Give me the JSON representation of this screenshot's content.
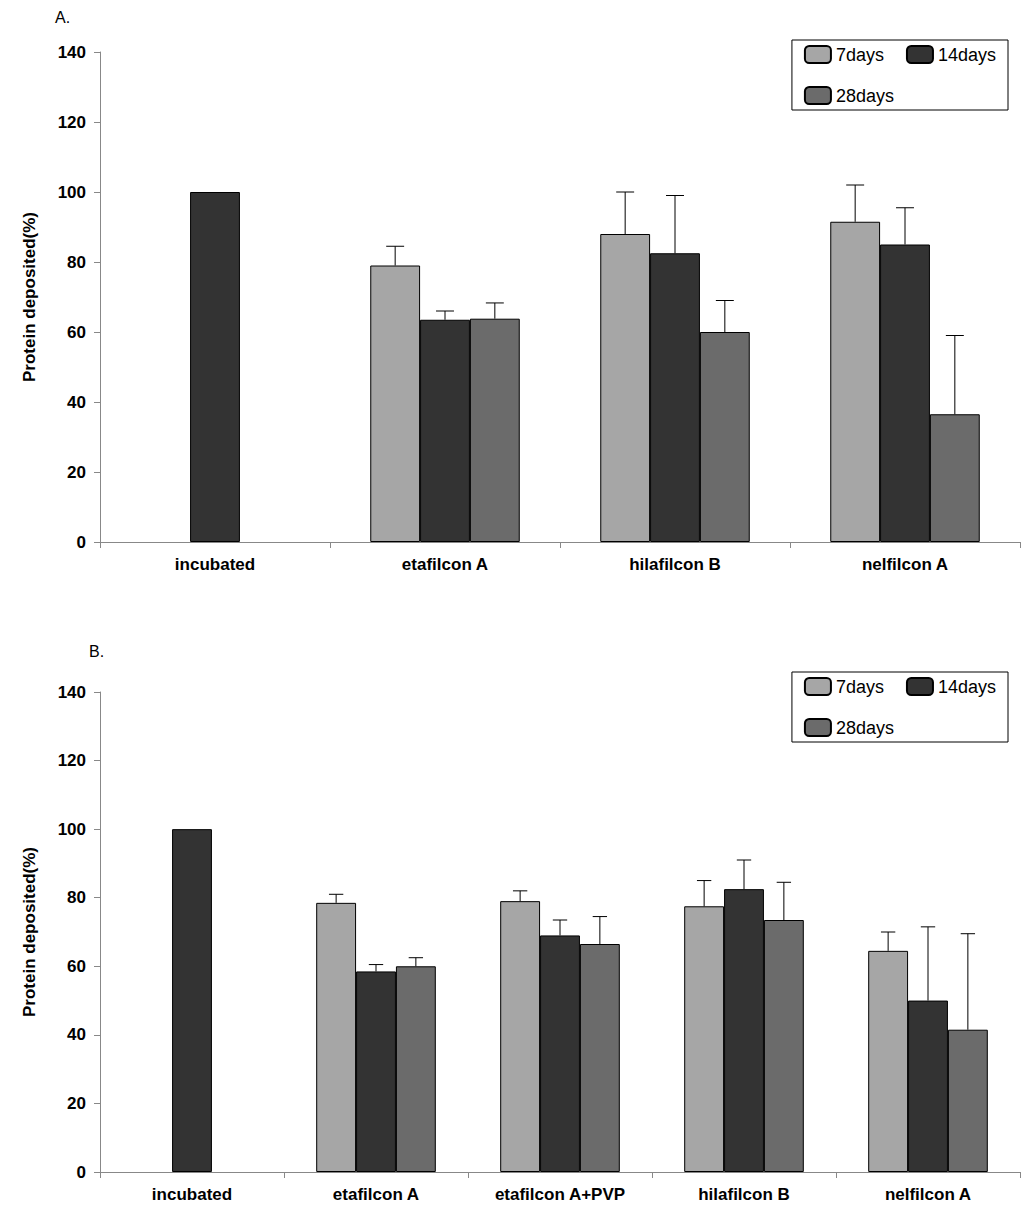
{
  "chart_data": [
    {
      "type": "bar",
      "title": "A.",
      "categories": [
        "incubated",
        "etafilcon A",
        "hilafilcon B",
        "nelfilcon A"
      ],
      "ylabel": "Protein deposited(%)",
      "ylim": [
        0,
        140
      ],
      "yticks": [
        0,
        20,
        40,
        60,
        80,
        100,
        120,
        140
      ],
      "grid": false,
      "legend": "upper right",
      "series": [
        {
          "name": "7days",
          "color": "#a6a6a6",
          "values": [
            null,
            79,
            88,
            91.5
          ],
          "errors": [
            null,
            5.5,
            12,
            10.5
          ]
        },
        {
          "name": "14days",
          "color": "#333333",
          "values": [
            100,
            63.5,
            82.5,
            85
          ],
          "errors": [
            null,
            2.5,
            16.5,
            10.5
          ]
        },
        {
          "name": "28days",
          "color": "#6b6b6b",
          "values": [
            null,
            63.8,
            60,
            36.5
          ],
          "errors": [
            null,
            4.5,
            9,
            22.5
          ]
        }
      ]
    },
    {
      "type": "bar",
      "title": "B.",
      "categories": [
        "incubated",
        "etafilcon A",
        "etafilcon A+PVP",
        "hilafilcon B",
        "nelfilcon A"
      ],
      "ylabel": "Protein deposited(%)",
      "ylim": [
        0,
        140
      ],
      "yticks": [
        0,
        20,
        40,
        60,
        80,
        100,
        120,
        140
      ],
      "grid": false,
      "legend": "upper right",
      "series": [
        {
          "name": "7days",
          "color": "#a6a6a6",
          "values": [
            null,
            78.5,
            79,
            77.5,
            64.5
          ],
          "errors": [
            null,
            2.5,
            3,
            7.5,
            5.5
          ]
        },
        {
          "name": "14days",
          "color": "#333333",
          "values": [
            100,
            58.5,
            69,
            82.5,
            50
          ],
          "errors": [
            null,
            2,
            4.5,
            8.5,
            21.5
          ]
        },
        {
          "name": "28days",
          "color": "#6b6b6b",
          "values": [
            null,
            60,
            66.5,
            73.5,
            41.5
          ],
          "errors": [
            null,
            2.5,
            8,
            11,
            28
          ]
        }
      ]
    }
  ]
}
